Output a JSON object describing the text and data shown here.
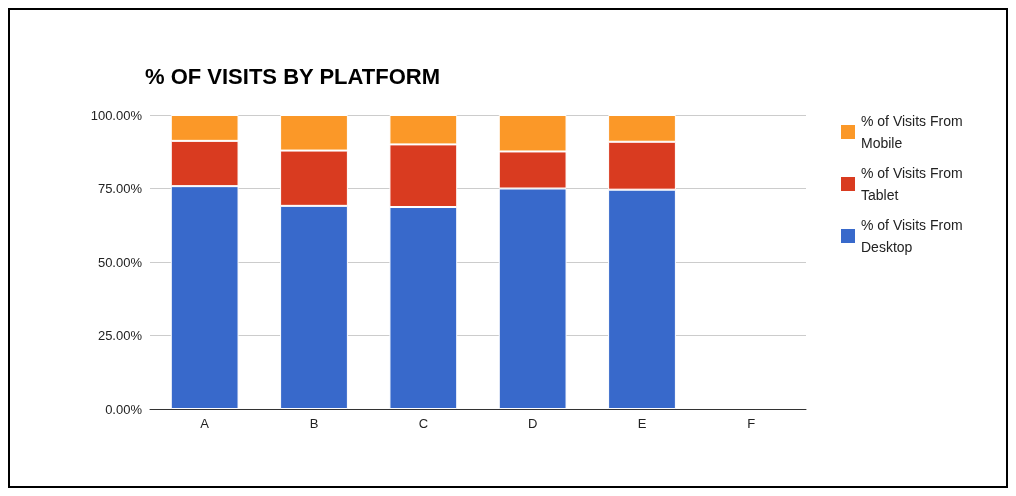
{
  "chart_data": {
    "type": "bar",
    "title": "% OF VISITS BY PLATFORM",
    "categories": [
      "A",
      "B",
      "C",
      "D",
      "E",
      "F"
    ],
    "stacked": true,
    "series": [
      {
        "name": "% of Visits From Desktop",
        "color": "#3869cb",
        "values": [
          75.8,
          69.1,
          68.7,
          75.0,
          74.6,
          null
        ]
      },
      {
        "name": "% of Visits From Tablet",
        "color": "#d93b20",
        "values": [
          15.4,
          18.8,
          21.3,
          12.6,
          16.3,
          null
        ]
      },
      {
        "name": "% of Visits From Mobile",
        "color": "#fb9828",
        "values": [
          8.8,
          12.1,
          10.0,
          12.4,
          9.1,
          null
        ]
      }
    ],
    "ylim": [
      0,
      100
    ],
    "yticks": [
      {
        "value": 0,
        "label": "0.00%"
      },
      {
        "value": 25,
        "label": "25.00%"
      },
      {
        "value": 50,
        "label": "50.00%"
      },
      {
        "value": 75,
        "label": "75.00%"
      },
      {
        "value": 100,
        "label": "100.00%"
      }
    ],
    "grid": "y",
    "legend": "right"
  }
}
